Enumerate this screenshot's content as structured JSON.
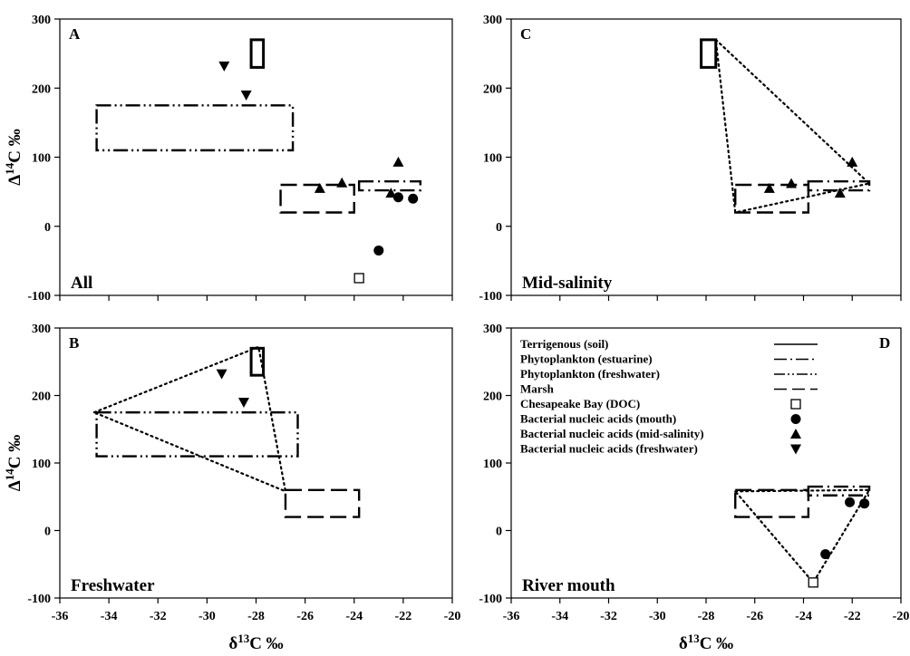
{
  "chart_data": [
    {
      "panel": "A",
      "type": "scatter",
      "label": "All",
      "xlim": [
        -36,
        -20
      ],
      "ylim": [
        -100,
        300
      ],
      "xticks": [
        -36,
        -34,
        -32,
        -30,
        -28,
        -26,
        -24,
        -22,
        -20
      ],
      "yticks": [
        -100,
        0,
        100,
        200,
        300
      ],
      "show_xtick_labels": false,
      "show_ytick_labels": true,
      "ylabel": "Δ14C ‰",
      "xlabel": "",
      "boxes": [
        {
          "source": "Terrigenous (soil)",
          "x": [
            -28.2,
            -27.7
          ],
          "y": [
            230,
            270
          ]
        },
        {
          "source": "Phytoplankton (freshwater)",
          "x": [
            -34.5,
            -26.5
          ],
          "y": [
            110,
            175
          ]
        },
        {
          "source": "Marsh",
          "x": [
            -27,
            -24
          ],
          "y": [
            20,
            60
          ]
        },
        {
          "source": "Phytoplankton (estuarine)",
          "x": [
            -23.8,
            -21.3
          ],
          "y": [
            52,
            65
          ]
        }
      ],
      "series": [
        {
          "name": "Chesapeake Bay (DOC)",
          "marker": "square-open",
          "x": [
            -23.8
          ],
          "y": [
            -75
          ]
        },
        {
          "name": "Bacterial nucleic acids (mouth)",
          "marker": "circle",
          "x": [
            -23,
            -22.2,
            -21.6
          ],
          "y": [
            -35,
            42,
            40
          ]
        },
        {
          "name": "Bacterial nucleic acids (mid-salinity)",
          "marker": "triangle-up",
          "x": [
            -25.4,
            -24.5,
            -22.2,
            -22.5
          ],
          "y": [
            55,
            63,
            93,
            48
          ]
        },
        {
          "name": "Bacterial nucleic acids (freshwater)",
          "marker": "triangle-down",
          "x": [
            -29.3,
            -28.4
          ],
          "y": [
            232,
            190
          ]
        }
      ],
      "mixing_polygon": []
    },
    {
      "panel": "C",
      "type": "scatter",
      "label": "Mid-salinity",
      "xlim": [
        -36,
        -20
      ],
      "ylim": [
        -100,
        300
      ],
      "xticks": [
        -36,
        -34,
        -32,
        -30,
        -28,
        -26,
        -24,
        -22,
        -20
      ],
      "yticks": [
        -100,
        0,
        100,
        200,
        300
      ],
      "show_xtick_labels": false,
      "show_ytick_labels": true,
      "ylabel": "",
      "xlabel": "",
      "boxes": [
        {
          "source": "Terrigenous (soil)",
          "x": [
            -28.2,
            -27.6
          ],
          "y": [
            230,
            270
          ]
        },
        {
          "source": "Marsh",
          "x": [
            -26.8,
            -23.8
          ],
          "y": [
            20,
            60
          ]
        },
        {
          "source": "Phytoplankton (estuarine)",
          "x": [
            -23.8,
            -21.3
          ],
          "y": [
            52,
            65
          ]
        }
      ],
      "series": [
        {
          "name": "Bacterial nucleic acids (mid-salinity)",
          "marker": "triangle-up",
          "x": [
            -25.4,
            -24.5,
            -22.5,
            -22
          ],
          "y": [
            55,
            62,
            48,
            93
          ]
        }
      ],
      "mixing_polygon": [
        [
          -27.6,
          270
        ],
        [
          -21.3,
          62
        ],
        [
          -26.8,
          20
        ]
      ]
    },
    {
      "panel": "B",
      "type": "scatter",
      "label": "Freshwater",
      "xlim": [
        -36,
        -20
      ],
      "ylim": [
        -100,
        300
      ],
      "xticks": [
        -36,
        -34,
        -32,
        -30,
        -28,
        -26,
        -24,
        -22,
        -20
      ],
      "yticks": [
        -100,
        0,
        100,
        200,
        300
      ],
      "show_xtick_labels": true,
      "show_ytick_labels": true,
      "ylabel": "Δ14C ‰",
      "xlabel": "δ13C ‰",
      "boxes": [
        {
          "source": "Terrigenous (soil)",
          "x": [
            -28.2,
            -27.7
          ],
          "y": [
            230,
            270
          ]
        },
        {
          "source": "Phytoplankton (freshwater)",
          "x": [
            -34.5,
            -26.3
          ],
          "y": [
            110,
            175
          ]
        },
        {
          "source": "Marsh",
          "x": [
            -26.8,
            -23.8
          ],
          "y": [
            20,
            60
          ]
        }
      ],
      "series": [
        {
          "name": "Bacterial nucleic acids (freshwater)",
          "marker": "triangle-down",
          "x": [
            -29.4,
            -28.5
          ],
          "y": [
            232,
            190
          ]
        }
      ],
      "mixing_polygon": [
        [
          -34.6,
          175
        ],
        [
          -27.9,
          272
        ],
        [
          -26.8,
          58
        ]
      ]
    },
    {
      "panel": "D",
      "type": "scatter",
      "label": "River mouth",
      "xlim": [
        -36,
        -20
      ],
      "ylim": [
        -100,
        300
      ],
      "xticks": [
        -36,
        -34,
        -32,
        -30,
        -28,
        -26,
        -24,
        -22,
        -20
      ],
      "yticks": [
        -100,
        0,
        100,
        200,
        300
      ],
      "show_xtick_labels": true,
      "show_ytick_labels": true,
      "ylabel": "",
      "xlabel": "δ13C ‰",
      "boxes": [
        {
          "source": "Marsh",
          "x": [
            -26.8,
            -23.8
          ],
          "y": [
            20,
            60
          ]
        },
        {
          "source": "Phytoplankton (estuarine)",
          "x": [
            -23.8,
            -21.3
          ],
          "y": [
            52,
            65
          ]
        }
      ],
      "series": [
        {
          "name": "Chesapeake Bay (DOC)",
          "marker": "square-open",
          "x": [
            -23.6
          ],
          "y": [
            -77
          ]
        },
        {
          "name": "Bacterial nucleic acids (mouth)",
          "marker": "circle",
          "x": [
            -23.1,
            -22.1,
            -21.5
          ],
          "y": [
            -35,
            42,
            40
          ]
        }
      ],
      "mixing_polygon": [
        [
          -26.8,
          58
        ],
        [
          -21.3,
          60
        ],
        [
          -23.6,
          -77
        ]
      ],
      "legend": {
        "placement": "top",
        "entries": [
          {
            "label": "Terrigenous (soil)",
            "symbol": "line-solid"
          },
          {
            "label": "Phytoplankton (estuarine)",
            "symbol": "line-dashdot"
          },
          {
            "label": "Phytoplankton (freshwater)",
            "symbol": "line-dashdotdot"
          },
          {
            "label": "Marsh",
            "symbol": "line-dash"
          },
          {
            "label": "Chesapeake Bay (DOC)",
            "symbol": "square-open"
          },
          {
            "label": "Bacterial nucleic acids (mouth)",
            "symbol": "circle"
          },
          {
            "label": "Bacterial nucleic acids (mid-salinity)",
            "symbol": "triangle-up"
          },
          {
            "label": "Bacterial nucleic acids (freshwater)",
            "symbol": "triangle-down"
          }
        ]
      }
    }
  ],
  "styles": {
    "line_color": "#000000",
    "marker_color": "#000000",
    "source_dash": {
      "Terrigenous (soil)": "solid",
      "Phytoplankton (estuarine)": "dash-dot",
      "Phytoplankton (freshwater)": "dash-dot-dot",
      "Marsh": "dash"
    }
  }
}
